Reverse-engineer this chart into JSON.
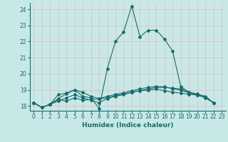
{
  "xlabel": "Humidex (Indice chaleur)",
  "xlim": [
    -0.5,
    23.5
  ],
  "ylim": [
    17.7,
    24.4
  ],
  "yticks": [
    18,
    19,
    20,
    21,
    22,
    23,
    24
  ],
  "xticks": [
    0,
    1,
    2,
    3,
    4,
    5,
    6,
    7,
    8,
    9,
    10,
    11,
    12,
    13,
    14,
    15,
    16,
    17,
    18,
    19,
    20,
    21,
    22,
    23
  ],
  "bg_color": "#c8e8e8",
  "grid_color": "#e8b8b8",
  "line_color": "#1a6b6b",
  "series": [
    [
      18.2,
      17.9,
      18.1,
      18.7,
      18.8,
      19.0,
      18.6,
      18.5,
      17.85,
      20.3,
      22.0,
      22.6,
      24.2,
      22.3,
      22.7,
      22.7,
      22.15,
      21.4,
      19.2,
      18.85,
      18.7,
      18.5,
      18.2
    ],
    [
      18.2,
      17.9,
      18.1,
      18.4,
      18.3,
      18.5,
      18.35,
      18.4,
      18.45,
      18.5,
      18.65,
      18.75,
      18.85,
      18.95,
      19.05,
      19.15,
      19.15,
      19.1,
      19.05,
      18.85,
      18.75,
      18.6,
      18.2
    ],
    [
      18.2,
      17.9,
      18.1,
      18.3,
      18.5,
      18.7,
      18.5,
      18.35,
      18.2,
      18.45,
      18.6,
      18.7,
      18.85,
      18.95,
      18.98,
      19.05,
      18.95,
      18.85,
      18.8,
      18.72,
      18.68,
      18.55,
      18.2
    ],
    [
      18.2,
      17.9,
      18.1,
      18.45,
      18.75,
      19.0,
      18.85,
      18.6,
      18.45,
      18.6,
      18.72,
      18.82,
      18.95,
      19.05,
      19.15,
      19.22,
      19.18,
      19.08,
      18.98,
      18.82,
      18.68,
      18.55,
      18.2
    ]
  ]
}
